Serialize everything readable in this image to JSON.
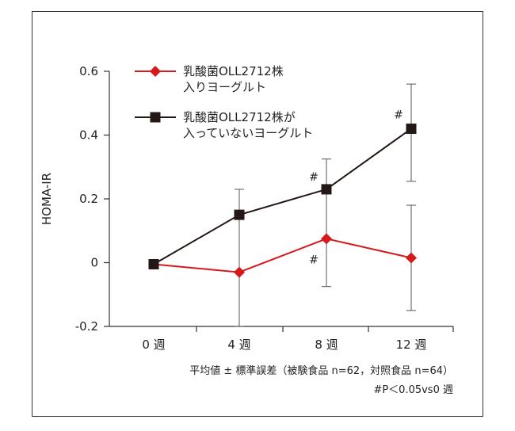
{
  "chart_data": {
    "type": "line",
    "categories": [
      "0 週",
      "4 週",
      "8 週",
      "12 週"
    ],
    "ylabel": "HOMA-IR",
    "xlabel": "",
    "ylim": [
      -0.2,
      0.6
    ],
    "yticks": [
      -0.2,
      0,
      0.2,
      0.4,
      0.6
    ],
    "ytick_labels": [
      "-0.2",
      "0",
      "0.2",
      "0.4",
      "0.6"
    ],
    "grid": false,
    "legend_position": "top-left",
    "series": [
      {
        "name": "乳酸菌OLL2712株入りヨーグルト",
        "name_lines": [
          "乳酸菌OLL2712株",
          "入りヨーグルト"
        ],
        "color": "#d7191c",
        "marker": "diamond",
        "values": [
          -0.005,
          -0.03,
          0.075,
          0.015
        ],
        "error": [
          [
            null,
            null
          ],
          [
            null,
            null
          ],
          [
            -0.075,
            0.325
          ],
          [
            -0.15,
            0.18
          ]
        ]
      },
      {
        "name": "乳酸菌OLL2712株が入っていないヨーグルト",
        "name_lines": [
          "乳酸菌OLL2712株が",
          "入っていないヨーグルト"
        ],
        "color": "#231815",
        "marker": "square",
        "values": [
          -0.005,
          0.15,
          0.23,
          0.42
        ],
        "error": [
          [
            null,
            null
          ],
          [
            -0.2,
            0.23
          ],
          [
            null,
            null
          ],
          [
            0.255,
            0.56
          ]
        ]
      }
    ],
    "annotations": [
      {
        "text": "#",
        "category": 2,
        "y": 0.27
      },
      {
        "text": "#",
        "category": 2,
        "y": 0.01
      },
      {
        "text": "#",
        "category": 3,
        "y": 0.465
      }
    ],
    "footnotes": [
      "平均値 ± 標準誤差（被験食品 n=62，対照食品 n=64）",
      "#P＜0.05vs0 週"
    ]
  }
}
